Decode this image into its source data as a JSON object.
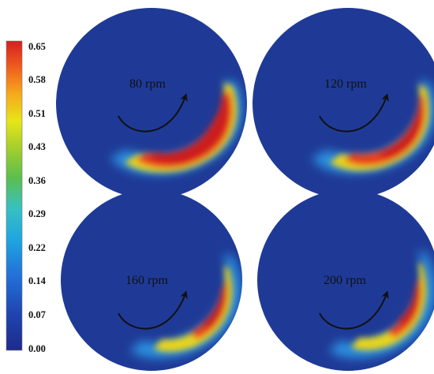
{
  "colorbar": {
    "ticks": [
      "0.65",
      "0.58",
      "0.51",
      "0.43",
      "0.36",
      "0.29",
      "0.22",
      "0.14",
      "0.07",
      "0.00"
    ],
    "stops": [
      "#1e1e8c",
      "#1f3fa8",
      "#2566d6",
      "#1ea0e0",
      "#3cc8c8",
      "#5fbf5a",
      "#9acd32",
      "#e6e617",
      "#f7b51b",
      "#ef6a20",
      "#d62020"
    ]
  },
  "panels": [
    {
      "label": "80 rpm",
      "hot_intensity": 0.62
    },
    {
      "label": "120 rpm",
      "hot_intensity": 0.55
    },
    {
      "label": "160 rpm",
      "hot_intensity": 0.5
    },
    {
      "label": "200 rpm",
      "hot_intensity": 0.48
    }
  ],
  "colors": {
    "ring_base": "#1f3a96",
    "arrow": "#111111"
  }
}
